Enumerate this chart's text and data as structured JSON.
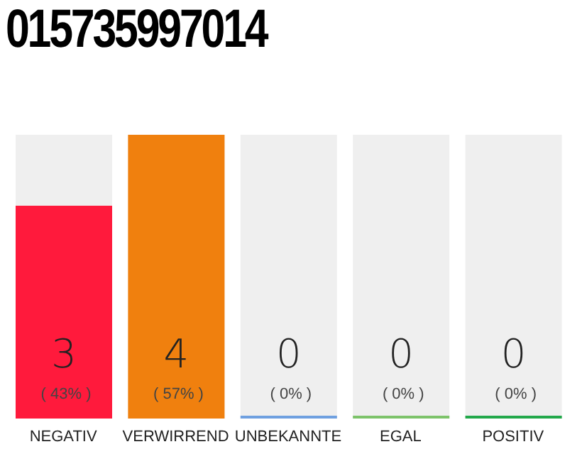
{
  "chart_data": {
    "type": "bar",
    "title": "015735997014",
    "categories": [
      "NEGATIV",
      "VERWIRREND",
      "UNBEKANNTE",
      "EGAL",
      "POSITIV"
    ],
    "values": [
      3,
      4,
      0,
      0,
      0
    ],
    "colors": [
      "#ff1a3c",
      "#f0800e",
      "#6fa0e0",
      "#7dc36a",
      "#22a84a"
    ],
    "tick_labels": "x",
    "value_labels": [
      "3 ( 43% )",
      "4 ( 57% )",
      "0 ( 0% )",
      "0 ( 0% )",
      "0 ( 0% )"
    ]
  }
}
